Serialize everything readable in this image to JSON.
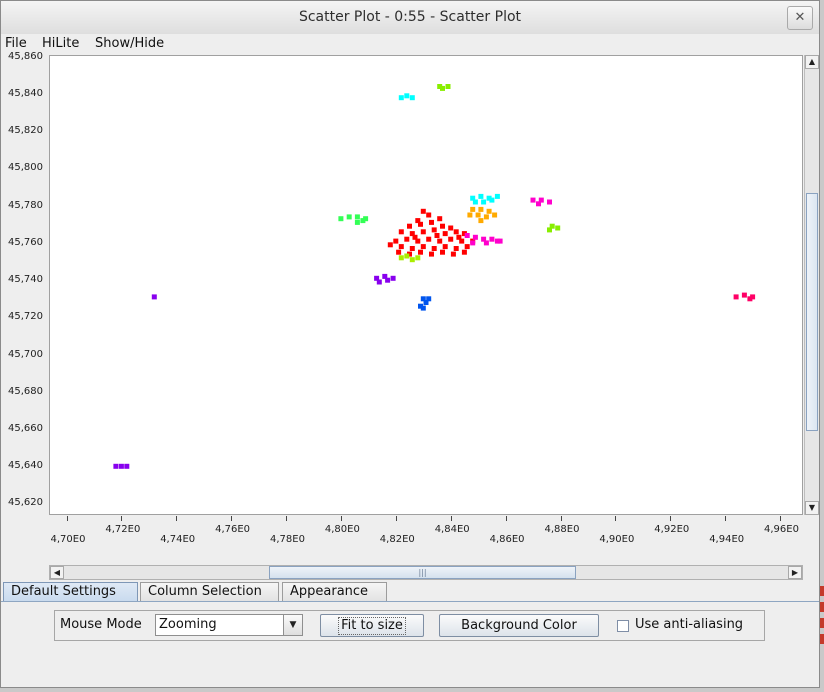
{
  "window": {
    "title": "Scatter Plot - 0:55 - Scatter Plot",
    "close_glyph": "✕"
  },
  "menu": {
    "items": [
      "File",
      "HiLite",
      "Show/Hide"
    ]
  },
  "chart_data": {
    "type": "scatter",
    "title": "",
    "xlabel": "",
    "ylabel": "",
    "xlim": [
      4.694,
      4.968
    ],
    "ylim": [
      45.6154,
      45.8614
    ],
    "x_ticks_lower": [
      "4,70E0",
      "4,74E0",
      "4,78E0",
      "4,82E0",
      "4,86E0",
      "4,90E0",
      "4,94E0"
    ],
    "x_ticks_upper": [
      "4,72E0",
      "4,76E0",
      "4,80E0",
      "4,84E0",
      "4,88E0",
      "4,92E0",
      "4,96E0"
    ],
    "x_tick_values": [
      4.7,
      4.72,
      4.74,
      4.76,
      4.78,
      4.8,
      4.82,
      4.84,
      4.86,
      4.88,
      4.9,
      4.92,
      4.94,
      4.96
    ],
    "y_ticks": [
      "45,860",
      "45,840",
      "45,820",
      "45,800",
      "45,780",
      "45,760",
      "45,740",
      "45,720",
      "45,700",
      "45,680",
      "45,660",
      "45,640",
      "45,620"
    ],
    "y_tick_values": [
      45.86,
      45.84,
      45.82,
      45.8,
      45.78,
      45.76,
      45.74,
      45.72,
      45.7,
      45.68,
      45.66,
      45.64,
      45.62
    ],
    "grid": false,
    "clusters": [
      {
        "color": "#ff0000",
        "points": [
          [
            4.828,
            45.773
          ],
          [
            4.832,
            45.776
          ],
          [
            4.836,
            45.774
          ],
          [
            4.825,
            45.77
          ],
          [
            4.829,
            45.771
          ],
          [
            4.833,
            45.772
          ],
          [
            4.837,
            45.77
          ],
          [
            4.84,
            45.769
          ],
          [
            4.822,
            45.767
          ],
          [
            4.826,
            45.766
          ],
          [
            4.83,
            45.767
          ],
          [
            4.834,
            45.768
          ],
          [
            4.838,
            45.766
          ],
          [
            4.842,
            45.767
          ],
          [
            4.845,
            45.766
          ],
          [
            4.82,
            45.762
          ],
          [
            4.824,
            45.763
          ],
          [
            4.828,
            45.762
          ],
          [
            4.832,
            45.763
          ],
          [
            4.836,
            45.762
          ],
          [
            4.84,
            45.763
          ],
          [
            4.844,
            45.762
          ],
          [
            4.848,
            45.762
          ],
          [
            4.818,
            45.76
          ],
          [
            4.822,
            45.759
          ],
          [
            4.826,
            45.758
          ],
          [
            4.83,
            45.759
          ],
          [
            4.834,
            45.758
          ],
          [
            4.838,
            45.759
          ],
          [
            4.842,
            45.758
          ],
          [
            4.846,
            45.759
          ],
          [
            4.821,
            45.756
          ],
          [
            4.825,
            45.755
          ],
          [
            4.829,
            45.756
          ],
          [
            4.833,
            45.755
          ],
          [
            4.837,
            45.756
          ],
          [
            4.841,
            45.755
          ],
          [
            4.845,
            45.756
          ],
          [
            4.83,
            45.778
          ],
          [
            4.827,
            45.764
          ],
          [
            4.835,
            45.765
          ],
          [
            4.843,
            45.764
          ]
        ]
      },
      {
        "color": "#aaee00",
        "points": [
          [
            4.824,
            45.754
          ],
          [
            4.826,
            45.752
          ],
          [
            4.828,
            45.753
          ],
          [
            4.822,
            45.753
          ]
        ]
      },
      {
        "color": "#00ffff",
        "points": [
          [
            4.848,
            45.785
          ],
          [
            4.851,
            45.786
          ],
          [
            4.854,
            45.785
          ],
          [
            4.857,
            45.786
          ],
          [
            4.849,
            45.783
          ],
          [
            4.852,
            45.783
          ],
          [
            4.855,
            45.784
          ],
          [
            4.824,
            45.84
          ],
          [
            4.826,
            45.839
          ],
          [
            4.822,
            45.839
          ]
        ]
      },
      {
        "color": "#ffaa00",
        "points": [
          [
            4.848,
            45.779
          ],
          [
            4.851,
            45.779
          ],
          [
            4.854,
            45.778
          ],
          [
            4.847,
            45.776
          ],
          [
            4.85,
            45.776
          ],
          [
            4.853,
            45.775
          ],
          [
            4.856,
            45.776
          ],
          [
            4.851,
            45.773
          ]
        ]
      },
      {
        "color": "#ff00cc",
        "points": [
          [
            4.846,
            45.765
          ],
          [
            4.849,
            45.764
          ],
          [
            4.852,
            45.763
          ],
          [
            4.855,
            45.763
          ],
          [
            4.858,
            45.762
          ],
          [
            4.848,
            45.761
          ],
          [
            4.853,
            45.761
          ],
          [
            4.857,
            45.762
          ],
          [
            4.87,
            45.784
          ],
          [
            4.873,
            45.784
          ],
          [
            4.876,
            45.783
          ],
          [
            4.872,
            45.782
          ]
        ]
      },
      {
        "color": "#33ff55",
        "points": [
          [
            4.803,
            45.775
          ],
          [
            4.806,
            45.775
          ],
          [
            4.809,
            45.774
          ],
          [
            4.806,
            45.772
          ],
          [
            4.808,
            45.773
          ],
          [
            4.8,
            45.774
          ]
        ]
      },
      {
        "color": "#88ee00",
        "points": [
          [
            4.877,
            45.77
          ],
          [
            4.879,
            45.769
          ],
          [
            4.876,
            45.768
          ],
          [
            4.836,
            45.845
          ],
          [
            4.839,
            45.845
          ],
          [
            4.837,
            45.844
          ]
        ]
      },
      {
        "color": "#8800ee",
        "points": [
          [
            4.813,
            45.742
          ],
          [
            4.816,
            45.743
          ],
          [
            4.819,
            45.742
          ],
          [
            4.814,
            45.74
          ],
          [
            4.817,
            45.741
          ],
          [
            4.732,
            45.732
          ],
          [
            4.718,
            45.641
          ],
          [
            4.72,
            45.641
          ],
          [
            4.722,
            45.641
          ]
        ]
      },
      {
        "color": "#0055ee",
        "points": [
          [
            4.83,
            45.731
          ],
          [
            4.831,
            45.729
          ],
          [
            4.829,
            45.727
          ],
          [
            4.83,
            45.726
          ],
          [
            4.832,
            45.731
          ]
        ]
      },
      {
        "color": "#ff0066",
        "points": [
          [
            4.944,
            45.732
          ],
          [
            4.947,
            45.733
          ],
          [
            4.95,
            45.732
          ],
          [
            4.949,
            45.731
          ]
        ]
      }
    ]
  },
  "tabs": [
    {
      "label": "Default Settings",
      "active": true
    },
    {
      "label": "Column Selection",
      "active": false
    },
    {
      "label": "Appearance",
      "active": false
    }
  ],
  "settings": {
    "mouse_mode_label": "Mouse Mode",
    "mouse_mode_value": "Zooming",
    "fit_button": "Fit to size",
    "bg_button": "Background Color",
    "antialias_label": "Use anti-aliasing",
    "antialias_checked": false
  },
  "colors": {
    "accent": "#c8daee",
    "error_strip": "#c43a2b"
  }
}
